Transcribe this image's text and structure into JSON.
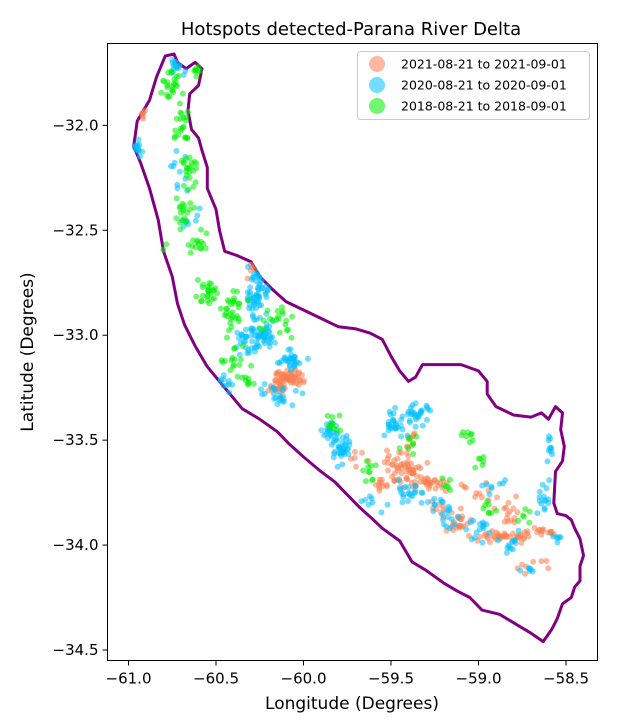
{
  "chart_data": {
    "type": "scatter",
    "title": "Hotspots detected-Parana River Delta",
    "xlabel": "Longitude (Degrees)",
    "ylabel": "Latitude (Degrees)",
    "xlim": [
      -61.12,
      -58.32
    ],
    "ylim": [
      -34.55,
      -31.61
    ],
    "xticks": [
      -61.0,
      -60.5,
      -60.0,
      -59.5,
      -59.0,
      -58.5
    ],
    "xtick_labels": [
      "−61.0",
      "−60.5",
      "−60.0",
      "−59.5",
      "−59.0",
      "−58.5"
    ],
    "yticks": [
      -32.0,
      -32.5,
      -33.0,
      -33.5,
      -34.0,
      -34.5
    ],
    "ytick_labels": [
      "−32.0",
      "−32.5",
      "−33.0",
      "−33.5",
      "−34.0",
      "−34.5"
    ],
    "grid": false,
    "legend_position": "top-right",
    "boundary_color": "#800080",
    "boundary": [
      [
        -60.79,
        -31.67
      ],
      [
        -60.74,
        -31.66
      ],
      [
        -60.72,
        -31.7
      ],
      [
        -60.67,
        -31.73
      ],
      [
        -60.62,
        -31.7
      ],
      [
        -60.58,
        -31.73
      ],
      [
        -60.6,
        -31.81
      ],
      [
        -60.65,
        -31.85
      ],
      [
        -60.66,
        -31.93
      ],
      [
        -60.64,
        -32.02
      ],
      [
        -60.6,
        -32.06
      ],
      [
        -60.58,
        -32.12
      ],
      [
        -60.55,
        -32.2
      ],
      [
        -60.55,
        -32.3
      ],
      [
        -60.5,
        -32.4
      ],
      [
        -60.48,
        -32.5
      ],
      [
        -60.45,
        -32.6
      ],
      [
        -60.38,
        -32.62
      ],
      [
        -60.3,
        -32.65
      ],
      [
        -60.25,
        -32.72
      ],
      [
        -60.18,
        -32.78
      ],
      [
        -60.1,
        -32.84
      ],
      [
        -60.0,
        -32.88
      ],
      [
        -59.9,
        -32.92
      ],
      [
        -59.8,
        -32.96
      ],
      [
        -59.7,
        -32.97
      ],
      [
        -59.62,
        -32.99
      ],
      [
        -59.55,
        -33.02
      ],
      [
        -59.5,
        -33.1
      ],
      [
        -59.45,
        -33.17
      ],
      [
        -59.4,
        -33.22
      ],
      [
        -59.36,
        -33.2
      ],
      [
        -59.32,
        -33.14
      ],
      [
        -59.2,
        -33.14
      ],
      [
        -59.1,
        -33.14
      ],
      [
        -59.0,
        -33.17
      ],
      [
        -58.95,
        -33.22
      ],
      [
        -58.95,
        -33.28
      ],
      [
        -58.9,
        -33.34
      ],
      [
        -58.8,
        -33.38
      ],
      [
        -58.7,
        -33.39
      ],
      [
        -58.64,
        -33.37
      ],
      [
        -58.6,
        -33.4
      ],
      [
        -58.56,
        -33.34
      ],
      [
        -58.52,
        -33.37
      ],
      [
        -58.53,
        -33.45
      ],
      [
        -58.51,
        -33.53
      ],
      [
        -58.52,
        -33.6
      ],
      [
        -58.56,
        -33.65
      ],
      [
        -58.57,
        -33.8
      ],
      [
        -58.55,
        -33.85
      ],
      [
        -58.5,
        -33.86
      ],
      [
        -58.47,
        -33.88
      ],
      [
        -58.45,
        -33.92
      ],
      [
        -58.42,
        -33.97
      ],
      [
        -58.4,
        -34.05
      ],
      [
        -58.42,
        -34.1
      ],
      [
        -58.42,
        -34.17
      ],
      [
        -58.45,
        -34.2
      ],
      [
        -58.47,
        -34.25
      ],
      [
        -58.52,
        -34.28
      ],
      [
        -58.55,
        -34.35
      ],
      [
        -58.58,
        -34.4
      ],
      [
        -58.63,
        -34.46
      ],
      [
        -58.7,
        -34.42
      ],
      [
        -58.78,
        -34.38
      ],
      [
        -58.88,
        -34.33
      ],
      [
        -58.98,
        -34.31
      ],
      [
        -59.05,
        -34.25
      ],
      [
        -59.12,
        -34.22
      ],
      [
        -59.2,
        -34.18
      ],
      [
        -59.3,
        -34.12
      ],
      [
        -59.38,
        -34.08
      ],
      [
        -59.45,
        -33.98
      ],
      [
        -59.55,
        -33.92
      ],
      [
        -59.6,
        -33.88
      ],
      [
        -59.68,
        -33.82
      ],
      [
        -59.75,
        -33.76
      ],
      [
        -59.82,
        -33.7
      ],
      [
        -59.9,
        -33.65
      ],
      [
        -60.0,
        -33.58
      ],
      [
        -60.08,
        -33.52
      ],
      [
        -60.15,
        -33.46
      ],
      [
        -60.25,
        -33.4
      ],
      [
        -60.35,
        -33.35
      ],
      [
        -60.45,
        -33.25
      ],
      [
        -60.55,
        -33.15
      ],
      [
        -60.62,
        -33.05
      ],
      [
        -60.68,
        -32.95
      ],
      [
        -60.72,
        -32.85
      ],
      [
        -60.75,
        -32.72
      ],
      [
        -60.8,
        -32.6
      ],
      [
        -60.83,
        -32.45
      ],
      [
        -60.88,
        -32.3
      ],
      [
        -60.93,
        -32.18
      ],
      [
        -60.97,
        -32.1
      ],
      [
        -60.95,
        -31.98
      ],
      [
        -60.88,
        -31.88
      ],
      [
        -60.84,
        -31.77
      ],
      [
        -60.79,
        -31.67
      ]
    ],
    "series": [
      {
        "name": "2021-08-21 to 2021-09-01",
        "color": "#FA8050",
        "clusters": [
          [
            -60.08,
            -33.2,
            0.06,
            0.03,
            55
          ],
          [
            -60.15,
            -33.24,
            0.04,
            0.03,
            20
          ],
          [
            -59.4,
            -33.65,
            0.08,
            0.06,
            45
          ],
          [
            -59.48,
            -33.6,
            0.05,
            0.04,
            15
          ],
          [
            -59.28,
            -33.7,
            0.06,
            0.03,
            25
          ],
          [
            -59.55,
            -33.72,
            0.05,
            0.03,
            12
          ],
          [
            -59.1,
            -33.9,
            0.06,
            0.05,
            20
          ],
          [
            -58.9,
            -33.96,
            0.08,
            0.02,
            25
          ],
          [
            -58.76,
            -33.96,
            0.05,
            0.02,
            15
          ],
          [
            -58.62,
            -33.94,
            0.06,
            0.02,
            15
          ],
          [
            -58.8,
            -33.85,
            0.08,
            0.06,
            15
          ],
          [
            -59.0,
            -33.75,
            0.08,
            0.05,
            10
          ],
          [
            -59.4,
            -33.5,
            0.04,
            0.04,
            8
          ],
          [
            -60.94,
            -31.94,
            0.03,
            0.03,
            6
          ],
          [
            -60.3,
            -32.68,
            0.04,
            0.03,
            5
          ],
          [
            -59.2,
            -33.8,
            0.08,
            0.08,
            12
          ],
          [
            -58.7,
            -34.1,
            0.08,
            0.05,
            8
          ],
          [
            -59.7,
            -33.6,
            0.05,
            0.04,
            6
          ]
        ]
      },
      {
        "name": "2020-08-21 to 2020-09-01",
        "color": "#00BFFF",
        "clusters": [
          [
            -60.26,
            -32.8,
            0.06,
            0.12,
            60
          ],
          [
            -60.22,
            -33.0,
            0.05,
            0.06,
            40
          ],
          [
            -60.33,
            -33.02,
            0.05,
            0.06,
            25
          ],
          [
            -60.07,
            -33.12,
            0.06,
            0.04,
            30
          ],
          [
            -60.1,
            -33.3,
            0.07,
            0.05,
            15
          ],
          [
            -59.78,
            -33.55,
            0.05,
            0.06,
            35
          ],
          [
            -59.85,
            -33.45,
            0.05,
            0.04,
            20
          ],
          [
            -59.48,
            -33.42,
            0.05,
            0.05,
            25
          ],
          [
            -59.35,
            -33.38,
            0.07,
            0.04,
            30
          ],
          [
            -59.4,
            -33.75,
            0.06,
            0.04,
            20
          ],
          [
            -59.25,
            -33.8,
            0.06,
            0.04,
            10
          ],
          [
            -59.18,
            -33.88,
            0.05,
            0.05,
            12
          ],
          [
            -59.0,
            -33.92,
            0.06,
            0.05,
            15
          ],
          [
            -58.82,
            -34.0,
            0.05,
            0.04,
            12
          ],
          [
            -58.62,
            -33.78,
            0.04,
            0.05,
            15
          ],
          [
            -58.59,
            -33.55,
            0.03,
            0.06,
            10
          ],
          [
            -58.9,
            -33.7,
            0.06,
            0.05,
            8
          ],
          [
            -60.45,
            -33.25,
            0.05,
            0.05,
            10
          ],
          [
            -60.96,
            -32.12,
            0.03,
            0.05,
            12
          ],
          [
            -60.72,
            -31.72,
            0.05,
            0.03,
            15
          ],
          [
            -60.7,
            -32.2,
            0.05,
            0.08,
            10
          ],
          [
            -60.65,
            -32.45,
            0.05,
            0.05,
            8
          ],
          [
            -59.6,
            -33.8,
            0.05,
            0.04,
            8
          ],
          [
            -60.2,
            -33.28,
            0.04,
            0.03,
            8
          ],
          [
            -58.72,
            -34.12,
            0.04,
            0.03,
            6
          ],
          [
            -58.55,
            -33.97,
            0.03,
            0.03,
            6
          ]
        ]
      },
      {
        "name": "2018-08-21 to 2018-09-01",
        "color": "#00EE00",
        "clusters": [
          [
            -60.75,
            -31.8,
            0.06,
            0.06,
            25
          ],
          [
            -60.68,
            -32.0,
            0.05,
            0.08,
            20
          ],
          [
            -60.65,
            -32.2,
            0.05,
            0.08,
            20
          ],
          [
            -60.68,
            -32.4,
            0.05,
            0.08,
            20
          ],
          [
            -60.6,
            -32.56,
            0.06,
            0.06,
            15
          ],
          [
            -60.55,
            -32.8,
            0.06,
            0.06,
            25
          ],
          [
            -60.4,
            -32.88,
            0.06,
            0.08,
            30
          ],
          [
            -60.4,
            -33.1,
            0.06,
            0.06,
            15
          ],
          [
            -60.15,
            -32.95,
            0.08,
            0.06,
            20
          ],
          [
            -60.3,
            -33.2,
            0.05,
            0.04,
            10
          ],
          [
            -59.85,
            -33.4,
            0.05,
            0.05,
            10
          ],
          [
            -59.6,
            -33.65,
            0.06,
            0.05,
            10
          ],
          [
            -59.4,
            -33.52,
            0.06,
            0.04,
            8
          ],
          [
            -59.05,
            -33.48,
            0.05,
            0.04,
            8
          ],
          [
            -58.95,
            -33.82,
            0.05,
            0.04,
            8
          ],
          [
            -58.72,
            -33.85,
            0.05,
            0.05,
            6
          ],
          [
            -60.97,
            -32.2,
            0.03,
            0.04,
            8
          ],
          [
            -60.6,
            -31.75,
            0.03,
            0.03,
            8
          ],
          [
            -59.2,
            -33.7,
            0.04,
            0.04,
            6
          ],
          [
            -60.85,
            -32.6,
            0.04,
            0.04,
            5
          ],
          [
            -59.0,
            -33.6,
            0.05,
            0.04,
            6
          ]
        ]
      }
    ]
  }
}
